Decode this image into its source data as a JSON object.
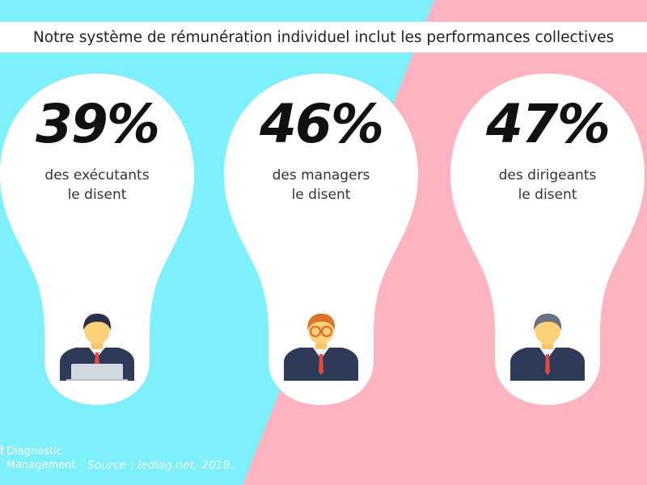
{
  "colors": {
    "left_background": "#7df0fb",
    "right_background": "#fdb3c0",
    "bubble": "#ffffff"
  },
  "title": "Notre système de rémunération individuel inclut les performances collectives",
  "stats": [
    {
      "value": "39%",
      "line1": "des exécutants",
      "line2": "le disent",
      "icon": "employee-laptop-icon"
    },
    {
      "value": "46%",
      "line1": "des managers",
      "line2": "le disent",
      "icon": "manager-glasses-icon"
    },
    {
      "value": "47%",
      "line1": "des dirigeants",
      "line2": "le disent",
      "icon": "executive-icon"
    }
  ],
  "brand": {
    "line1": "Diagnostic",
    "line2": "Management"
  },
  "source": "Source : lediag.net, 2018."
}
